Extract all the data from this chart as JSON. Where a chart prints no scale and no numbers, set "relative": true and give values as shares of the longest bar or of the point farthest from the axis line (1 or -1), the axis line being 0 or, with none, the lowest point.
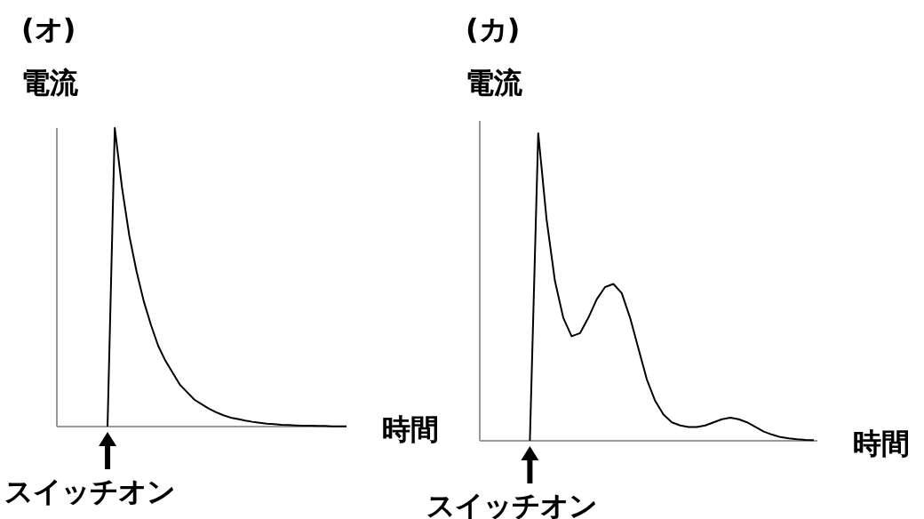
{
  "chart_data": [
    {
      "type": "line",
      "relative": true,
      "title": "(オ)",
      "ylabel": "電流",
      "xlabel": "時間",
      "annotations": [
        "スイッチオン"
      ],
      "categories": [
        null,
        null,
        null,
        null,
        null,
        null,
        null,
        null,
        null,
        null,
        null,
        null,
        null,
        null,
        null,
        null,
        null,
        null,
        null,
        null,
        null,
        null,
        null,
        null,
        null,
        null,
        null,
        null,
        null,
        null,
        null,
        null,
        null,
        null,
        null,
        null,
        null,
        null,
        null,
        null,
        null
      ],
      "series": [
        {
          "color": "#000000",
          "values": [
            null,
            null,
            null,
            null,
            null,
            null,
            null,
            0,
            1.0,
            0.8,
            0.64,
            0.52,
            0.42,
            0.34,
            0.27,
            0.22,
            0.18,
            0.14,
            0.115,
            0.09,
            0.075,
            0.06,
            0.048,
            0.038,
            0.03,
            0.025,
            0.02,
            0.016,
            0.013,
            0.01,
            0.008,
            0.006,
            0.005,
            0.004,
            0.003,
            0.003,
            0.002,
            0.002,
            0.001,
            0.001,
            0.001
          ]
        }
      ]
    },
    {
      "type": "line",
      "relative": true,
      "title": "(カ)",
      "ylabel": "電流",
      "xlabel": "時間",
      "annotations": [
        "スイッチオン"
      ],
      "categories": [
        null,
        null,
        null,
        null,
        null,
        null,
        null,
        null,
        null,
        null,
        null,
        null,
        null,
        null,
        null,
        null,
        null,
        null,
        null,
        null,
        null,
        null,
        null,
        null,
        null,
        null,
        null,
        null,
        null,
        null,
        null,
        null,
        null,
        null,
        null,
        null,
        null,
        null,
        null,
        null,
        null
      ],
      "series": [
        {
          "color": "#000000",
          "values": [
            null,
            null,
            null,
            null,
            null,
            null,
            0,
            1.0,
            0.72,
            0.52,
            0.4,
            0.34,
            0.35,
            0.4,
            0.46,
            0.5,
            0.51,
            0.48,
            0.4,
            0.3,
            0.2,
            0.13,
            0.085,
            0.06,
            0.05,
            0.045,
            0.045,
            0.05,
            0.06,
            0.07,
            0.075,
            0.07,
            0.06,
            0.045,
            0.03,
            0.02,
            0.012,
            0.008,
            0.005,
            0.003,
            0.002
          ]
        }
      ]
    }
  ]
}
